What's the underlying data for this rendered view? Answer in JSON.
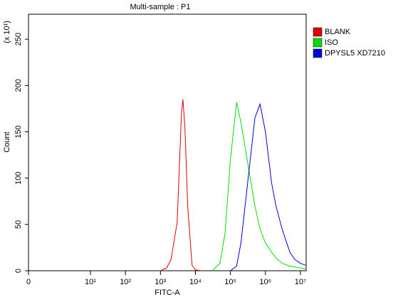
{
  "chart_data": {
    "type": "line",
    "title": "Multi-sample : P1",
    "x_label": "FITC-A",
    "y_label": "Count",
    "y_unit_label": "(x 10¹)",
    "xscale": "log",
    "x": [
      1000,
      1500,
      2000,
      3000,
      4000,
      4400,
      5000,
      6000,
      8000,
      10000,
      15000,
      20000,
      30000,
      50000,
      70000,
      100000,
      150000,
      200000,
      300000,
      500000,
      700000,
      1000000,
      1500000,
      2000000,
      3000000,
      5000000,
      7000000,
      10000000,
      14000000
    ],
    "series": [
      {
        "name": "BLANK",
        "color": "#e00000",
        "values": [
          0,
          3,
          12,
          52,
          170,
          185,
          155,
          70,
          6,
          1,
          0,
          null,
          null,
          null,
          null,
          null,
          null,
          null,
          null,
          null,
          null,
          null,
          null,
          null,
          null,
          null,
          null,
          null,
          null
        ]
      },
      {
        "name": "ISO",
        "color": "#00e000",
        "values": [
          null,
          null,
          null,
          null,
          null,
          null,
          null,
          null,
          null,
          null,
          null,
          null,
          0,
          8,
          40,
          120,
          182,
          160,
          120,
          70,
          45,
          30,
          20,
          14,
          8,
          5,
          4,
          3,
          2
        ]
      },
      {
        "name": "DPYSL5 XD7210",
        "color": "#0000e0",
        "values": [
          null,
          null,
          null,
          null,
          null,
          null,
          null,
          null,
          null,
          null,
          null,
          null,
          null,
          null,
          null,
          0,
          5,
          30,
          90,
          165,
          180,
          150,
          95,
          70,
          45,
          20,
          12,
          8,
          6
        ]
      }
    ],
    "xlim": [
      0,
      14600000
    ],
    "xticks": [
      0,
      {
        "value": 10,
        "label": "10¹"
      },
      {
        "value": 100,
        "label": "10²"
      },
      {
        "value": 1000,
        "label": "10³"
      },
      {
        "value": 10000,
        "label": "10⁴"
      },
      {
        "value": 100000,
        "label": "10⁵"
      },
      {
        "value": 1000000,
        "label": "10⁶"
      },
      {
        "value": 10000000,
        "label": "10⁷"
      }
    ],
    "ylim": [
      0,
      277
    ],
    "yticks": [
      0,
      50,
      100,
      150,
      200,
      250
    ],
    "legend": "right"
  }
}
